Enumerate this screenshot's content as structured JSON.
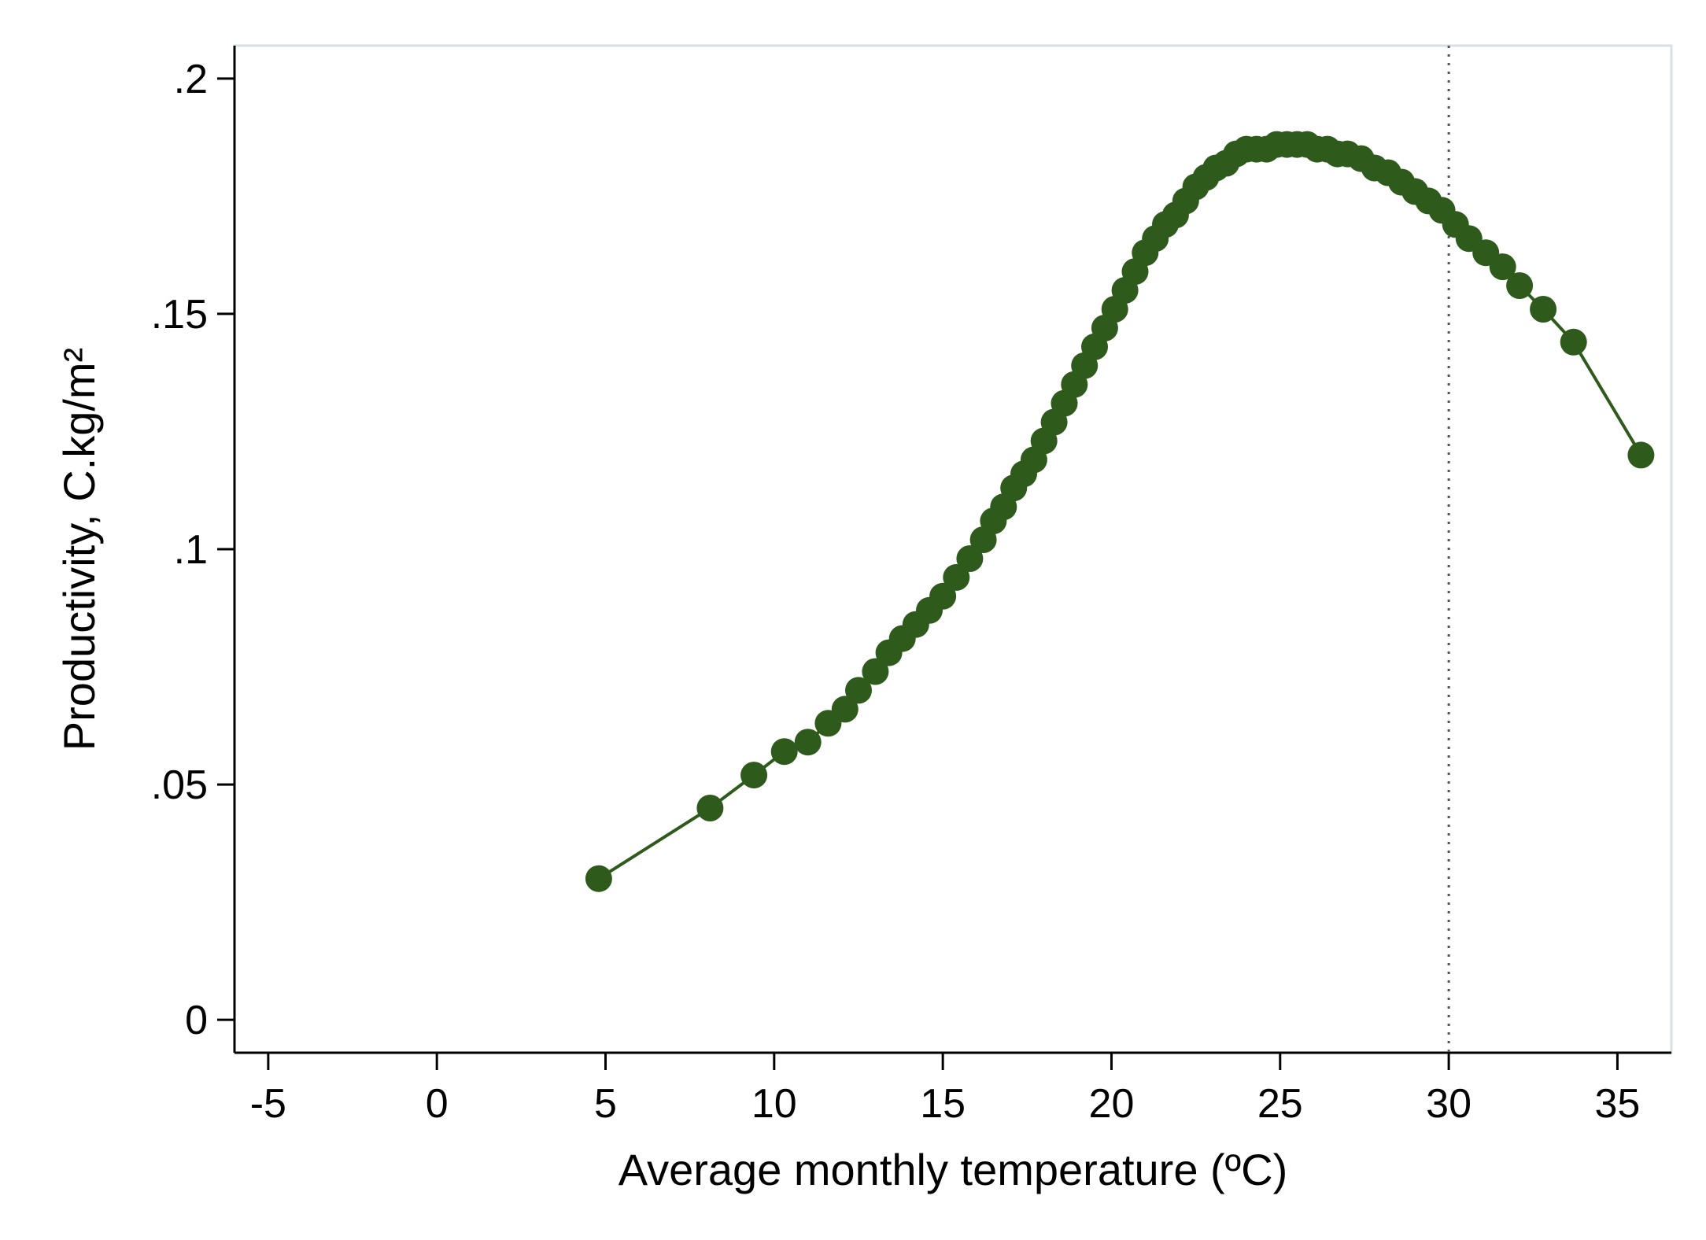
{
  "chart_data": {
    "type": "line",
    "xlabel": "Average monthly temperature (ºC)",
    "ylabel": "Productivity, C.kg/m²",
    "xlim": [
      -6,
      36.6
    ],
    "ylim": [
      -0.007,
      0.207
    ],
    "x_ticks": [
      -5,
      0,
      5,
      10,
      15,
      20,
      25,
      30,
      35
    ],
    "x_tick_labels": [
      "-5",
      "0",
      "5",
      "10",
      "15",
      "20",
      "25",
      "30",
      "35"
    ],
    "y_ticks": [
      0,
      0.05,
      0.1,
      0.15,
      0.2
    ],
    "y_tick_labels": [
      "0",
      ".05",
      ".1",
      ".15",
      ".2"
    ],
    "reference_line": {
      "axis": "x",
      "value": 30,
      "style": "dotted"
    },
    "grid": false,
    "legend": "none",
    "marker": "filled-circle",
    "color": "#2e5a1c",
    "series": [
      {
        "x": [
          4.8,
          8.1,
          9.4,
          10.3,
          11.0,
          11.6,
          12.1,
          12.5,
          13.0,
          13.4,
          13.8,
          14.2,
          14.6,
          15.0,
          15.4,
          15.8,
          16.2,
          16.5,
          16.8,
          17.1,
          17.4,
          17.7,
          18.0,
          18.3,
          18.6,
          18.9,
          19.2,
          19.5,
          19.8,
          20.1,
          20.4,
          20.7,
          21.0,
          21.3,
          21.6,
          21.9,
          22.2,
          22.5,
          22.8,
          23.1,
          23.4,
          23.7,
          24.0,
          24.3,
          24.6,
          24.9,
          25.2,
          25.5,
          25.8,
          26.1,
          26.4,
          26.7,
          27.0,
          27.4,
          27.8,
          28.2,
          28.6,
          29.0,
          29.4,
          29.8,
          30.2,
          30.6,
          31.1,
          31.6,
          32.1,
          32.8,
          33.7,
          35.7
        ],
        "y": [
          0.03,
          0.045,
          0.052,
          0.057,
          0.059,
          0.063,
          0.066,
          0.07,
          0.074,
          0.078,
          0.081,
          0.084,
          0.087,
          0.09,
          0.094,
          0.098,
          0.102,
          0.106,
          0.109,
          0.113,
          0.116,
          0.119,
          0.123,
          0.127,
          0.131,
          0.135,
          0.139,
          0.143,
          0.147,
          0.151,
          0.155,
          0.159,
          0.163,
          0.166,
          0.169,
          0.171,
          0.174,
          0.177,
          0.179,
          0.181,
          0.182,
          0.184,
          0.185,
          0.185,
          0.185,
          0.186,
          0.186,
          0.186,
          0.186,
          0.185,
          0.185,
          0.184,
          0.184,
          0.183,
          0.181,
          0.18,
          0.178,
          0.176,
          0.174,
          0.172,
          0.169,
          0.166,
          0.163,
          0.16,
          0.156,
          0.151,
          0.144,
          0.12
        ]
      }
    ]
  }
}
